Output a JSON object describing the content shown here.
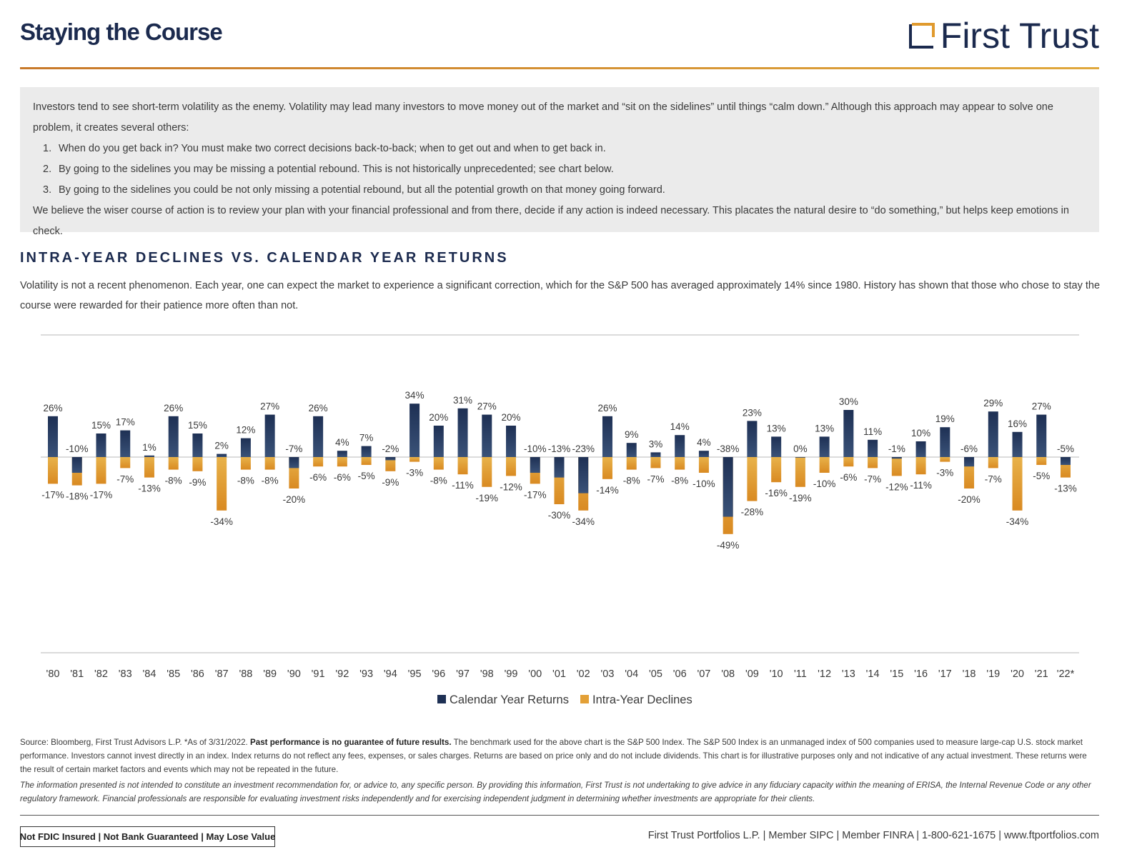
{
  "header": {
    "title": "Staying the Course",
    "logo_text": "First Trust",
    "logo_icon": "first-trust-bracket-logo"
  },
  "intro": {
    "paragraph": "Investors tend to see short-term volatility as the enemy. Volatility may lead many investors to move money out of the market and “sit on the sidelines” until things “calm down.” Although this approach may appear to solve one problem, it creates several others:",
    "items": [
      {
        "num": "1.",
        "text": "When do you get back in? You must make two correct decisions back-to-back; when to get out and when to get back in."
      },
      {
        "num": "2.",
        "text": "By going to the sidelines you may be missing a potential rebound. This is not historically unprecedented; see chart below."
      },
      {
        "num": "3.",
        "text": "By going to the sidelines you could be not only missing a potential rebound, but all the potential growth on that money going forward."
      }
    ],
    "closing": "We believe the wiser course of action is to review your plan with your financial professional and from there, decide if any action is indeed necessary. This placates the natural desire to “do something,” but helps keep emotions in check."
  },
  "section": {
    "heading": "INTRA-YEAR DECLINES VS. CALENDAR YEAR RETURNS",
    "text": "Volatility is not a recent phenomenon. Each year, one can expect the market to experience a significant correction, which for the S&P 500 has averaged approximately 14% since 1980. History has shown that those who chose to stay the course were rewarded for their patience more often than not."
  },
  "chart_data": {
    "type": "bar",
    "categories": [
      "'80",
      "'81",
      "'82",
      "'83",
      "'84",
      "'85",
      "'86",
      "'87",
      "'88",
      "'89",
      "'90",
      "'91",
      "'92",
      "'93",
      "'94",
      "'95",
      "'96",
      "'97",
      "'98",
      "'99",
      "'00",
      "'01",
      "'02",
      "'03",
      "'04",
      "'05",
      "'06",
      "'07",
      "'08",
      "'09",
      "'10",
      "'11",
      "'12",
      "'13",
      "'14",
      "'15",
      "'16",
      "'17",
      "'18",
      "'19",
      "'20",
      "'21",
      "'22*"
    ],
    "series": [
      {
        "name": "Calendar Year Returns",
        "color": "#1e3054",
        "values": [
          26,
          -10,
          15,
          17,
          1,
          26,
          15,
          2,
          12,
          27,
          -7,
          26,
          4,
          7,
          -2,
          34,
          20,
          31,
          27,
          20,
          -10,
          -13,
          -23,
          26,
          9,
          3,
          14,
          4,
          -38,
          23,
          13,
          0,
          13,
          30,
          11,
          -1,
          10,
          19,
          -6,
          29,
          16,
          27,
          -5
        ]
      },
      {
        "name": "Intra-Year Declines",
        "color": "#e3a037",
        "values": [
          -17,
          -18,
          -17,
          -7,
          -13,
          -8,
          -9,
          -34,
          -8,
          -8,
          -20,
          -6,
          -6,
          -5,
          -9,
          -3,
          -8,
          -11,
          -19,
          -12,
          -17,
          -30,
          -34,
          -14,
          -8,
          -7,
          -8,
          -10,
          -49,
          -28,
          -16,
          -19,
          -10,
          -6,
          -7,
          -12,
          -11,
          -3,
          -20,
          -7,
          -34,
          -5,
          -13
        ]
      }
    ],
    "legend_position": "bottom-center",
    "grid": false
  },
  "footer": {
    "source_prefix": "Source: Bloomberg, First Trust Advisors L.P. *As of 3/31/2022.",
    "source_bold": "Past performance is no guarantee of future results.",
    "source_rest": "The benchmark used for the above chart is the S&P 500 Index. The S&P 500 Index is an unmanaged index of 500 companies used to measure large-cap U.S. stock market performance. Investors cannot invest directly in an index. Index returns do not reflect any fees, expenses, or sales charges. Returns are based on price only and do not include dividends. This chart is for illustrative purposes only and not indicative of any actual investment. These returns were the result of certain market factors and events which may not be repeated in the future.",
    "disclaimer": "The information presented is not intended to constitute an investment recommendation for, or advice to, any specific person. By providing this information, First Trust is not undertaking to give advice in any fiduciary capacity within the meaning of ERISA, the Internal Revenue Code or any other regulatory framework. Financial professionals are responsible for evaluating investment risks independently and for exercising independent judgment in determining whether investments are appropriate for their clients.",
    "fdic_notice": "Not FDIC Insured | Not Bank Guaranteed | May Lose Value",
    "contact": "First Trust Portfolios L.P. | Member SIPC | Member FINRA | 1-800-621-1675 | www.ftportfolios.com"
  }
}
